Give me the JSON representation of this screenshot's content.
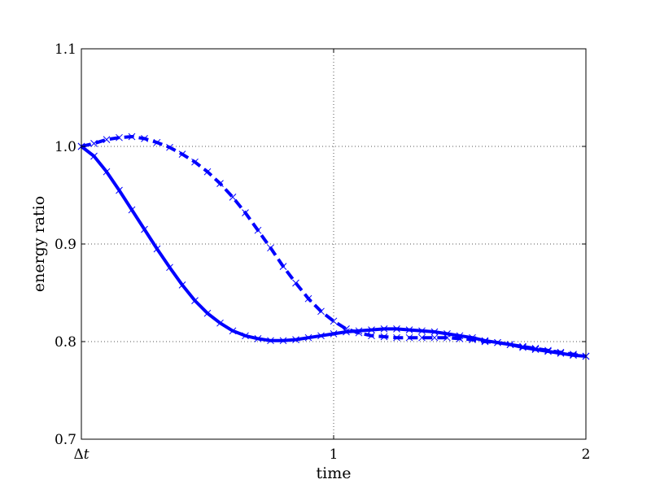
{
  "chart_data": {
    "type": "line",
    "xlabel": "time",
    "ylabel": "energy ratio",
    "xlim": [
      0,
      2
    ],
    "ylim": [
      0.7,
      1.1
    ],
    "grid": true,
    "x_ticks": [
      {
        "value": 0,
        "label_main": "Δ",
        "label_italic": "t"
      },
      {
        "value": 1,
        "label_main": "1",
        "label_italic": ""
      },
      {
        "value": 2,
        "label_main": "2",
        "label_italic": ""
      }
    ],
    "y_ticks": [
      {
        "value": 0.7,
        "label": "0.7"
      },
      {
        "value": 0.8,
        "label": "0.8"
      },
      {
        "value": 0.9,
        "label": "0.9"
      },
      {
        "value": 1.0,
        "label": "1.0"
      },
      {
        "value": 1.1,
        "label": "1.1"
      }
    ],
    "series": [
      {
        "style": "solid",
        "color": "#0000ff",
        "x": [
          0,
          0.05,
          0.1,
          0.15,
          0.2,
          0.25,
          0.3,
          0.35,
          0.4,
          0.45,
          0.5,
          0.55,
          0.6,
          0.65,
          0.7,
          0.75,
          0.8,
          0.85,
          0.9,
          0.95,
          1.0,
          1.05,
          1.1,
          1.15,
          1.2,
          1.25,
          1.3,
          1.35,
          1.4,
          1.45,
          1.5,
          1.55,
          1.6,
          1.65,
          1.7,
          1.75,
          1.8,
          1.85,
          1.9,
          1.95,
          2.0
        ],
        "y": [
          1.0,
          0.99,
          0.974,
          0.955,
          0.935,
          0.915,
          0.895,
          0.876,
          0.858,
          0.842,
          0.829,
          0.819,
          0.811,
          0.806,
          0.803,
          0.801,
          0.801,
          0.802,
          0.804,
          0.806,
          0.808,
          0.81,
          0.811,
          0.812,
          0.813,
          0.813,
          0.812,
          0.811,
          0.81,
          0.808,
          0.806,
          0.804,
          0.801,
          0.799,
          0.797,
          0.794,
          0.792,
          0.79,
          0.788,
          0.786,
          0.785
        ]
      },
      {
        "style": "dashed",
        "color": "#0000ff",
        "x": [
          0,
          0.05,
          0.1,
          0.15,
          0.2,
          0.25,
          0.3,
          0.35,
          0.4,
          0.45,
          0.5,
          0.55,
          0.6,
          0.65,
          0.7,
          0.75,
          0.8,
          0.85,
          0.9,
          0.95,
          1.0,
          1.05,
          1.1,
          1.15,
          1.2,
          1.25,
          1.3,
          1.35,
          1.4,
          1.45,
          1.5,
          1.55,
          1.6,
          1.65,
          1.7,
          1.75,
          1.8,
          1.85,
          1.9,
          1.95,
          2.0
        ],
        "y": [
          1.0,
          1.003,
          1.007,
          1.009,
          1.01,
          1.008,
          1.004,
          0.999,
          0.992,
          0.984,
          0.974,
          0.962,
          0.948,
          0.932,
          0.914,
          0.896,
          0.877,
          0.86,
          0.844,
          0.831,
          0.821,
          0.813,
          0.809,
          0.806,
          0.805,
          0.804,
          0.804,
          0.804,
          0.804,
          0.804,
          0.803,
          0.802,
          0.8,
          0.799,
          0.797,
          0.795,
          0.793,
          0.791,
          0.789,
          0.787,
          0.785
        ]
      }
    ]
  }
}
